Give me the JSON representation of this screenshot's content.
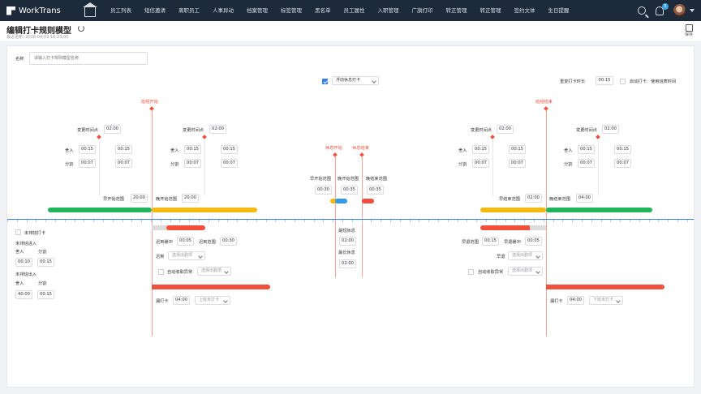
{
  "app": {
    "name": "WorkTrans"
  },
  "nav": [
    "员工列表",
    "短信邀请",
    "离职员工",
    "人事异动",
    "档案管理",
    "标签管理",
    "黑名单",
    "员工属性",
    "入职管理",
    "广旗打印",
    "转正管理",
    "转正管理",
    "签约文体",
    "生日提醒"
  ],
  "notifications": {
    "count": "5"
  },
  "page": {
    "title": "编辑打卡规则模型",
    "updated": "最近更新: 2018-04-03 16:23:00",
    "save_label": "保存"
  },
  "form": {
    "name_label": "名称",
    "name_placeholder": "请输入打卡规则模型名称"
  },
  "options": {
    "float_rest_checked": true,
    "float_rest_value": "浮动休息打卡",
    "repeat_label": "重复打卡时长",
    "repeat_value": "00:15",
    "auto_punch_label": "启动打卡：使用班表时间"
  },
  "markers": {
    "shift_start": "班组开始",
    "shift_end": "班组结束",
    "rest_start": "休息开始",
    "rest_end": "休息结束"
  },
  "left": {
    "change1_label": "变更时间点",
    "change1_value": "02:00",
    "change2_label": "变更时间点",
    "change2_value": "02:00",
    "in1_label": "舍入",
    "in1_a": "00:15",
    "in1_b": "00:15",
    "split1_label": "分割",
    "split1_a": "00:07",
    "split1_b": "00:07",
    "in2_label": "舍入",
    "in2_a": "00:15",
    "in2_b": "00:15",
    "split2_label": "分割",
    "split2_a": "00:07",
    "split2_b": "00:07",
    "early_range_label": "早开始范围",
    "early_range_value": "20:00",
    "late_range_label": "晚开始范围",
    "late_range_value": "20:00"
  },
  "right": {
    "change1_label": "变更时间点",
    "change1_value": "02:00",
    "change2_label": "变更时间点",
    "change2_value": "02:00",
    "in1_label": "舍入",
    "in1_a": "00:15",
    "in1_b": "00:15",
    "split1_label": "分割",
    "split1_a": "00:07",
    "split1_b": "00:07",
    "in2_label": "舍入",
    "in2_a": "00:15",
    "in2_b": "00:15",
    "split2_label": "分割",
    "split2_a": "00:07",
    "split2_b": "00:07",
    "early_range_label": "早结束范围",
    "early_range_value": "02:00",
    "late_range_label": "晚结束范围",
    "late_range_value": "04:00"
  },
  "rest": {
    "early_label": "早开始范围",
    "early_value": "00:30",
    "late_label": "晚开始范围",
    "late_value": "00:35",
    "end_label": "晚结束范围",
    "end_value": "00:35",
    "min_label": "最短休息",
    "min_value": "02:00",
    "max_label": "最长休息",
    "max_value": "02:00"
  },
  "lower_left": {
    "no_punch_label": "未排班打卡",
    "in_label": "未排班进入",
    "in_round": "舍入",
    "in_split": "分割",
    "in_round_value": "00:10",
    "in_split_value": "00:15",
    "out_label": "未排班出入",
    "out_round": "舍入",
    "out_split": "分割",
    "out_round_value": "40:00",
    "out_split_value": "00:15",
    "late_buffer_label": "迟到缓冲",
    "late_buffer_value": "00:05",
    "late_range_label": "迟到范围",
    "late_range_value": "00:30",
    "late_label": "迟到",
    "late_select": "选择出勤项",
    "auto_label": "自动收取异常",
    "auto_select": "选择出勤项",
    "miss_label": "漏打卡",
    "miss_value": "04:00",
    "miss_select": "上班未打卡"
  },
  "lower_right": {
    "early_range_label": "早退范围",
    "early_range_value": "00:15",
    "early_buffer_label": "早退缓冲",
    "early_buffer_value": "00:05",
    "early_label": "早退",
    "early_select": "选择出勤项",
    "auto_label": "自动收取异常",
    "auto_select": "选择出勤项",
    "miss_label": "漏打卡",
    "miss_value": "04:00",
    "miss_select": "下班未打卡"
  },
  "colors": {
    "green": "#22b35e",
    "yellow": "#f5b90f",
    "red": "#f0503c",
    "blue": "#2f80ed",
    "gray": "#dcdcdc"
  }
}
